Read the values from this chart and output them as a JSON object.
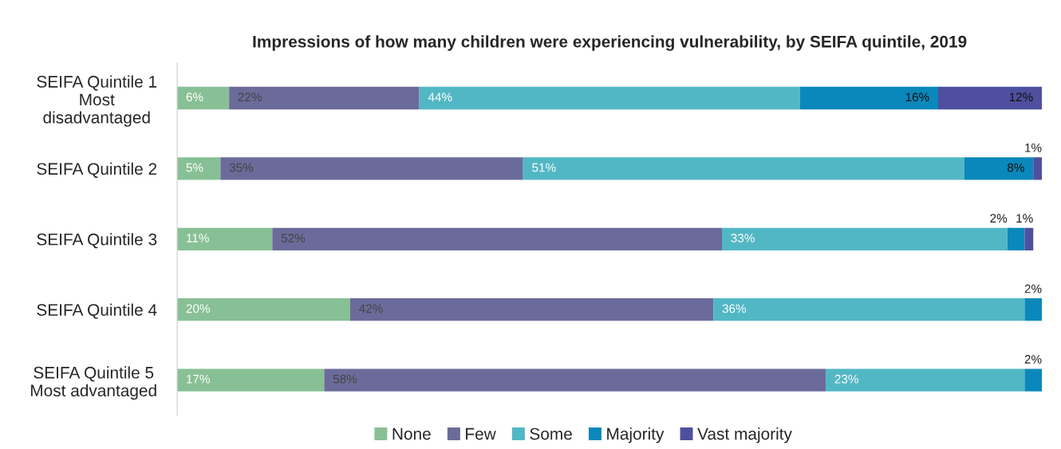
{
  "chart_data": {
    "type": "bar",
    "orientation": "horizontal",
    "stacked": true,
    "title": "Impressions of how many children were experiencing vulnerability, by SEIFA quintile, 2019",
    "categories": [
      "SEIFA Quintile 1\nMost\ndisadvantaged",
      "SEIFA Quintile 2",
      "SEIFA Quintile 3",
      "SEIFA Quintile 4",
      "SEIFA Quintile 5\nMost advantaged"
    ],
    "series": [
      {
        "name": "None",
        "color": "#88c095",
        "values": [
          6,
          5,
          11,
          20,
          17
        ],
        "value_labels": [
          "6%",
          "5%",
          "11%",
          "20%",
          "17%"
        ]
      },
      {
        "name": "Few",
        "color": "#6b6b9b",
        "values": [
          22,
          35,
          52,
          42,
          58
        ],
        "value_labels": [
          "22%",
          "35%",
          "52%",
          "42%",
          "58%"
        ]
      },
      {
        "name": "Some",
        "color": "#52b7c4",
        "values": [
          44,
          51,
          33,
          36,
          23
        ],
        "value_labels": [
          "44%",
          "51%",
          "33%",
          "36%",
          "23%"
        ]
      },
      {
        "name": "Majority",
        "color": "#0a88bb",
        "values": [
          16,
          8,
          2,
          2,
          2
        ],
        "value_labels": [
          "16%",
          "8%",
          "2%",
          "2%",
          "2%"
        ]
      },
      {
        "name": "Vast majority",
        "color": "#4f4fa0",
        "values": [
          12,
          1,
          1,
          null,
          null
        ],
        "value_labels": [
          "12%",
          "1%",
          "1%",
          null,
          null
        ]
      }
    ],
    "legend": "bottom",
    "tick_labels": "y"
  }
}
